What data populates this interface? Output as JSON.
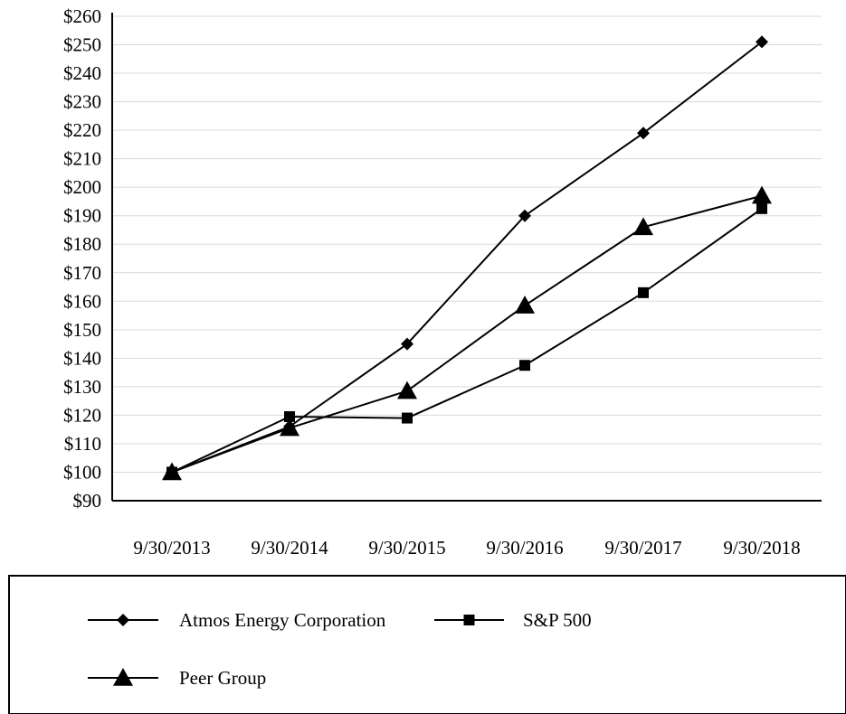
{
  "chart_data": {
    "type": "line",
    "title": "",
    "xlabel": "",
    "ylabel": "",
    "categories": [
      "9/30/2013",
      "9/30/2014",
      "9/30/2015",
      "9/30/2016",
      "9/30/2017",
      "9/30/2018"
    ],
    "ylim": [
      90,
      260
    ],
    "y_tick_step": 10,
    "y_tick_prefix": "$",
    "grid": "horizontal",
    "legend_position": "bottom",
    "series": [
      {
        "name": "Atmos Energy Corporation",
        "marker": "diamond",
        "color": "#000000",
        "values": [
          100,
          116,
          145,
          190,
          219,
          251
        ]
      },
      {
        "name": "S&P 500",
        "marker": "square",
        "color": "#000000",
        "values": [
          100,
          119.5,
          119,
          137.5,
          163,
          192.5
        ]
      },
      {
        "name": "Peer Group",
        "marker": "triangle",
        "color": "#000000",
        "values": [
          100,
          115.5,
          128.5,
          158.5,
          186,
          197
        ]
      }
    ]
  }
}
